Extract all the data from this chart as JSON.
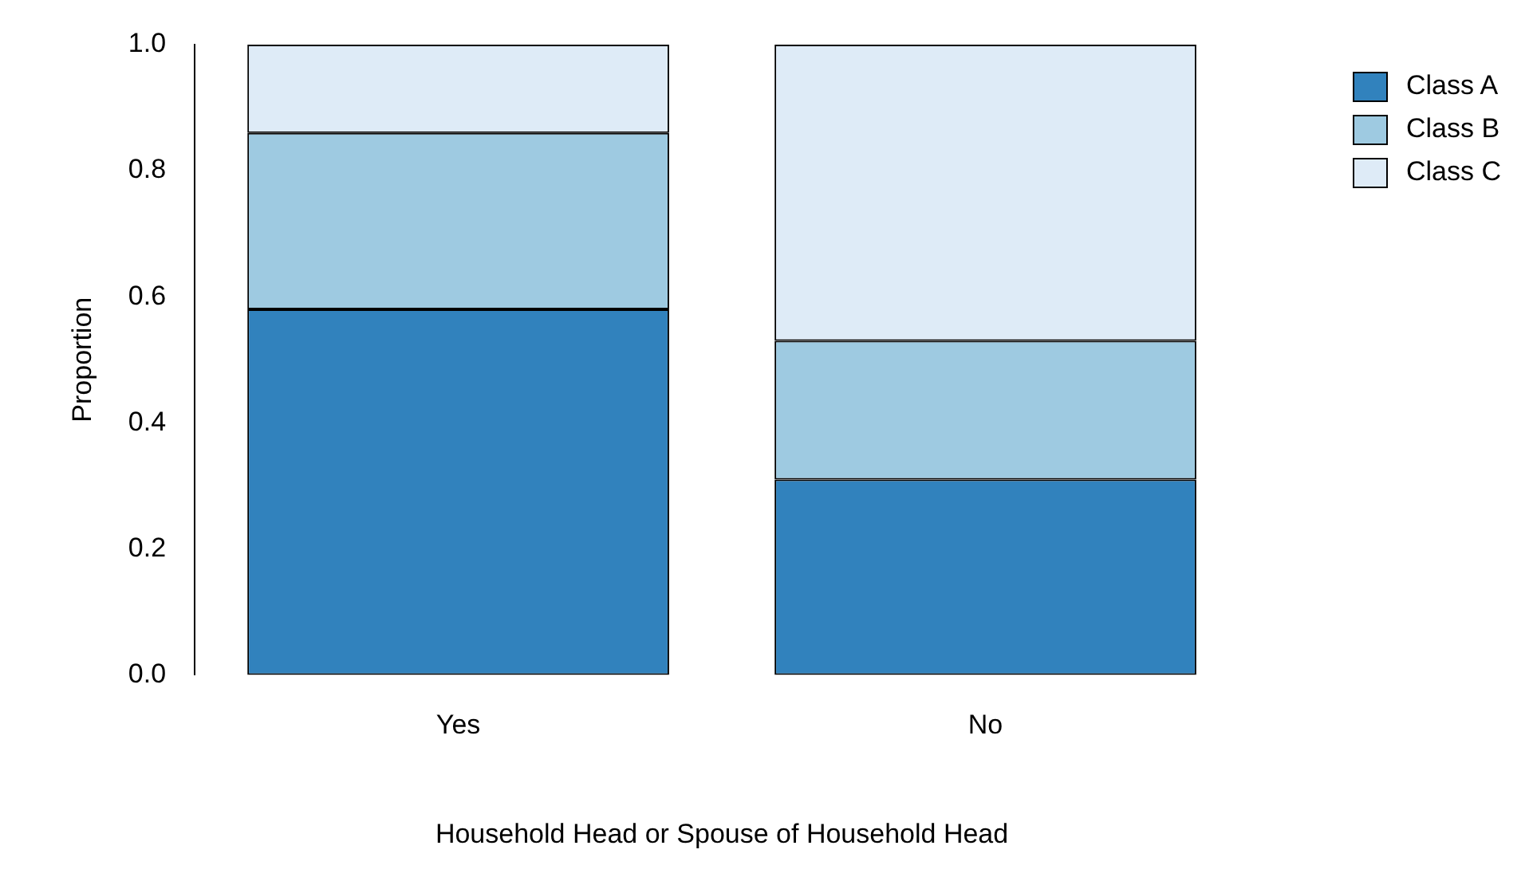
{
  "chart_data": {
    "type": "bar",
    "stacked": true,
    "xlabel": "Household Head or Spouse of Household Head",
    "ylabel": "Proportion",
    "categories": [
      "Yes",
      "No"
    ],
    "series": [
      {
        "name": "Class A",
        "color": "#3182bd",
        "values": [
          0.58,
          0.31
        ]
      },
      {
        "name": "Class B",
        "color": "#9ecae1",
        "values": [
          0.28,
          0.22
        ]
      },
      {
        "name": "Class C",
        "color": "#deebf7",
        "values": [
          0.14,
          0.47
        ]
      }
    ],
    "ylim": [
      0,
      1
    ],
    "yticks": [
      {
        "value": 0,
        "label": "0.0"
      },
      0.2,
      0.4,
      0.6,
      0.8,
      {
        "value": 1,
        "label": "1.0"
      }
    ],
    "grid": false,
    "legend": "top right"
  }
}
